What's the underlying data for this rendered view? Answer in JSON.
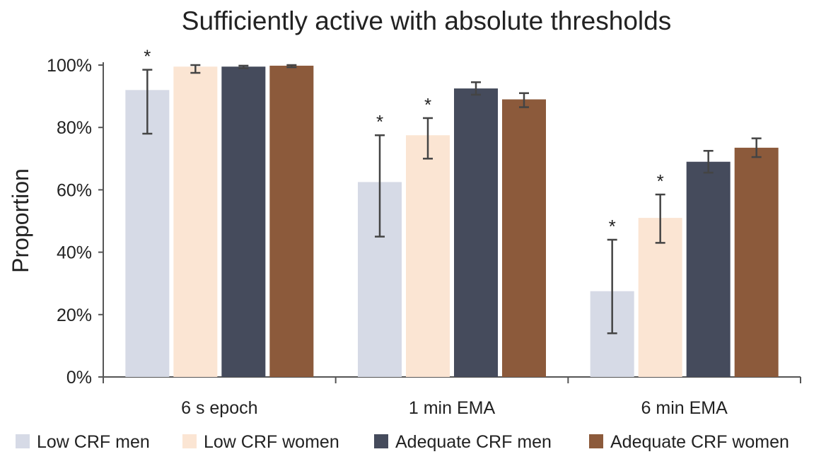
{
  "chart_data": {
    "type": "bar",
    "title": "Sufficiently active with absolute thresholds",
    "xlabel": "",
    "ylabel": "Proportion",
    "ylim": [
      0,
      100
    ],
    "yticks": [
      0,
      20,
      40,
      60,
      80,
      100
    ],
    "ytick_labels": [
      "0%",
      "20%",
      "40%",
      "60%",
      "80%",
      "100%"
    ],
    "categories": [
      "6 s epoch",
      "1 min EMA",
      "6 min EMA"
    ],
    "legend_position": "bottom",
    "grid": false,
    "series": [
      {
        "name": "Low CRF men",
        "color": "#d6dae6",
        "values": [
          92,
          62.5,
          27.5
        ],
        "err_low": [
          78,
          45,
          14
        ],
        "err_high": [
          98.5,
          77.5,
          44
        ],
        "significant": [
          true,
          true,
          true
        ]
      },
      {
        "name": "Low CRF women",
        "color": "#fbe5d3",
        "values": [
          99.5,
          77.5,
          51
        ],
        "err_low": [
          97.5,
          70,
          43
        ],
        "err_high": [
          100,
          83,
          58.5
        ],
        "significant": [
          false,
          true,
          true
        ]
      },
      {
        "name": "Adequate CRF men",
        "color": "#454b5c",
        "values": [
          99.5,
          92.5,
          69
        ],
        "err_low": [
          99,
          90.5,
          65.5
        ],
        "err_high": [
          99.8,
          94.5,
          72.5
        ],
        "significant": [
          false,
          false,
          false
        ]
      },
      {
        "name": "Adequate CRF women",
        "color": "#8c5a3b",
        "values": [
          99.8,
          89,
          73.5
        ],
        "err_low": [
          99.3,
          86.5,
          70.5
        ],
        "err_high": [
          100,
          91,
          76.5
        ],
        "significant": [
          false,
          false,
          false
        ]
      }
    ],
    "significance_marker": "*"
  }
}
